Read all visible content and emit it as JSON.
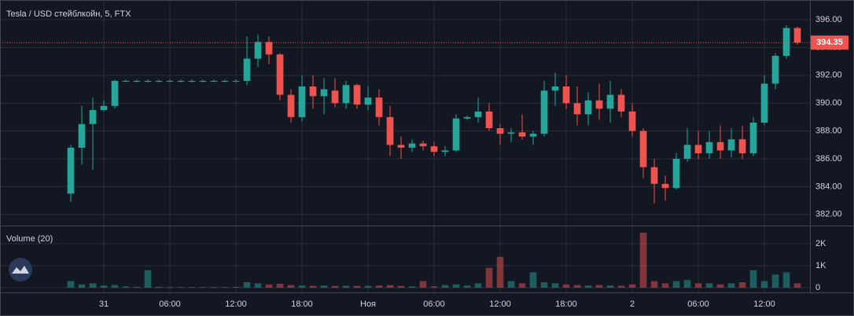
{
  "chart_data": [
    {
      "type": "candlestick",
      "title": "Tesla / USD стейблкойн, 5, FTX",
      "x": [
        -3,
        -2,
        -1,
        0,
        1,
        2,
        3,
        4,
        5,
        6,
        7,
        8,
        9,
        10,
        11,
        12,
        13,
        14,
        15,
        16,
        17,
        18,
        19,
        20,
        21,
        22,
        23,
        24,
        25,
        26,
        27,
        28,
        29,
        30,
        31,
        32,
        33,
        34,
        35,
        36,
        37,
        38,
        39,
        40,
        41,
        42,
        43,
        44,
        45,
        46,
        47,
        48,
        49,
        50,
        51,
        52,
        53,
        54,
        55,
        56,
        57,
        58,
        59,
        60,
        61,
        62,
        63
      ],
      "open": [
        383.5,
        386.8,
        388.5,
        389.5,
        389.8,
        391.6,
        391.6,
        391.6,
        391.6,
        391.6,
        391.6,
        391.6,
        391.6,
        391.6,
        391.6,
        391.6,
        391.6,
        393.2,
        394.4,
        393.5,
        390.6,
        389.0,
        391.2,
        390.5,
        390.9,
        390.0,
        391.3,
        389.9,
        390.4,
        389.0,
        387.0,
        386.8,
        387.1,
        386.9,
        386.5,
        386.6,
        388.9,
        389.0,
        389.4,
        388.2,
        387.8,
        387.9,
        387.6,
        387.8,
        390.9,
        391.2,
        390.0,
        389.2,
        390.2,
        389.6,
        390.6,
        389.4,
        388.0,
        385.4,
        384.2,
        383.9,
        386.0,
        387.0,
        386.4,
        387.2,
        386.6,
        387.4,
        386.4,
        388.6,
        391.4,
        393.4,
        395.4
      ],
      "high": [
        387.0,
        389.8,
        390.4,
        390.2,
        391.7,
        391.7,
        391.7,
        391.7,
        391.7,
        391.7,
        391.7,
        391.7,
        391.7,
        391.7,
        391.7,
        391.7,
        394.8,
        394.9,
        394.8,
        393.6,
        391.0,
        392.0,
        392.0,
        391.8,
        391.8,
        391.6,
        391.4,
        391.2,
        391.0,
        389.8,
        387.6,
        387.4,
        387.3,
        387.2,
        386.9,
        389.2,
        389.1,
        390.4,
        390.0,
        388.5,
        388.2,
        389.2,
        388.0,
        391.6,
        392.2,
        392.0,
        391.2,
        390.8,
        391.4,
        391.6,
        391.0,
        390.0,
        388.2,
        386.0,
        384.8,
        386.4,
        388.2,
        388.0,
        388.0,
        388.4,
        388.2,
        388.4,
        389.0,
        392.0,
        393.6,
        395.6,
        395.5
      ],
      "low": [
        382.9,
        385.6,
        385.2,
        389.4,
        389.6,
        391.5,
        391.5,
        391.5,
        391.5,
        391.5,
        391.5,
        391.5,
        391.5,
        391.5,
        391.5,
        391.5,
        391.3,
        392.6,
        392.8,
        390.2,
        388.6,
        388.7,
        389.6,
        389.2,
        389.7,
        389.6,
        389.6,
        389.5,
        388.4,
        386.2,
        386.0,
        386.5,
        386.6,
        386.2,
        386.2,
        386.5,
        388.8,
        388.6,
        388.0,
        387.0,
        387.2,
        387.4,
        387.0,
        387.6,
        389.8,
        389.6,
        388.4,
        388.4,
        388.8,
        388.6,
        389.0,
        387.6,
        384.6,
        382.8,
        383.0,
        383.8,
        385.8,
        386.0,
        386.0,
        386.0,
        386.1,
        386.0,
        386.2,
        388.4,
        391.0,
        393.2,
        394.2
      ],
      "close": [
        386.8,
        388.5,
        389.5,
        389.8,
        391.6,
        391.6,
        391.6,
        391.6,
        391.6,
        391.6,
        391.6,
        391.6,
        391.6,
        391.6,
        391.6,
        391.6,
        393.2,
        394.4,
        393.5,
        390.6,
        389.0,
        391.2,
        390.5,
        391.0,
        390.0,
        391.3,
        389.9,
        390.4,
        389.0,
        387.0,
        386.8,
        387.1,
        386.9,
        386.5,
        386.6,
        388.9,
        389.0,
        389.4,
        388.2,
        387.8,
        387.9,
        387.6,
        387.8,
        390.9,
        391.2,
        390.0,
        389.2,
        390.2,
        389.6,
        390.6,
        389.4,
        388.0,
        385.4,
        384.2,
        383.9,
        386.0,
        387.0,
        386.4,
        387.2,
        386.6,
        387.4,
        386.4,
        388.6,
        391.4,
        393.4,
        395.4,
        394.35
      ],
      "up_color": "#26a69a",
      "down_color": "#ef5350",
      "xlim": [
        -9.43,
        64.14
      ],
      "ylim": [
        381.2,
        397.3
      ],
      "yticks": [
        {
          "value": 382,
          "label": "382.00"
        },
        {
          "value": 384,
          "label": "384.00"
        },
        {
          "value": 386,
          "label": "386.00"
        },
        {
          "value": 388,
          "label": "388.00"
        },
        {
          "value": 390,
          "label": "390.00"
        },
        {
          "value": 392,
          "label": "392.00"
        },
        {
          "value": 394,
          "label": "394.00"
        },
        {
          "value": 396,
          "label": "396.00"
        }
      ],
      "last_price": 394.35,
      "last_price_color": "#ef5350",
      "grid": true
    },
    {
      "type": "bar",
      "title": "Volume (20)",
      "x": [
        -3,
        -2,
        -1,
        0,
        1,
        2,
        3,
        4,
        5,
        6,
        7,
        8,
        9,
        10,
        11,
        12,
        13,
        14,
        15,
        16,
        17,
        18,
        19,
        20,
        21,
        22,
        23,
        24,
        25,
        26,
        27,
        28,
        29,
        30,
        31,
        32,
        33,
        34,
        35,
        36,
        37,
        38,
        39,
        40,
        41,
        42,
        43,
        44,
        45,
        46,
        47,
        48,
        49,
        50,
        51,
        52,
        53,
        54,
        55,
        56,
        57,
        58,
        59,
        60,
        61,
        62,
        63
      ],
      "values": [
        300,
        150,
        200,
        100,
        120,
        60,
        40,
        800,
        40,
        30,
        30,
        30,
        30,
        30,
        30,
        40,
        250,
        200,
        150,
        180,
        120,
        100,
        90,
        100,
        80,
        90,
        80,
        90,
        100,
        120,
        80,
        60,
        300,
        60,
        120,
        150,
        100,
        200,
        900,
        1400,
        300,
        200,
        700,
        250,
        200,
        150,
        120,
        100,
        120,
        100,
        90,
        150,
        2500,
        300,
        200,
        300,
        350,
        200,
        200,
        150,
        200,
        250,
        800,
        300,
        600,
        700,
        200
      ],
      "xlim": [
        -9.43,
        64.14
      ],
      "ylim": [
        -214,
        2786
      ],
      "yticks": [
        {
          "value": 0,
          "label": "0"
        },
        {
          "value": 1000,
          "label": "1K"
        },
        {
          "value": 2000,
          "label": "2K"
        }
      ],
      "xticks": [
        {
          "value": 0,
          "label": "31"
        },
        {
          "value": 6,
          "label": "06:00"
        },
        {
          "value": 12,
          "label": "12:00"
        },
        {
          "value": 18,
          "label": "18:00"
        },
        {
          "value": 24,
          "label": "Ноя"
        },
        {
          "value": 30,
          "label": "06:00"
        },
        {
          "value": 36,
          "label": "12:00"
        },
        {
          "value": 42,
          "label": "18:00"
        },
        {
          "value": 48,
          "label": "2"
        },
        {
          "value": 54,
          "label": "06:00"
        },
        {
          "value": 60,
          "label": "12:00"
        }
      ],
      "grid": true
    }
  ]
}
